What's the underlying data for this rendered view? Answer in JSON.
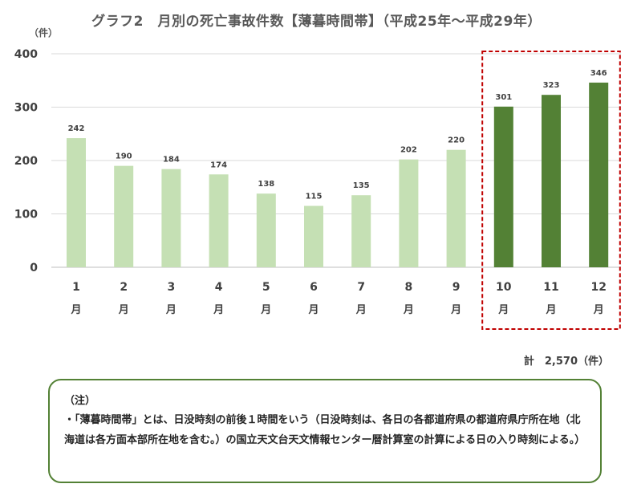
{
  "chart_data": {
    "type": "bar",
    "title": "グラフ2　月別の死亡事故件数【薄暮時間帯】（平成25年～平成29年）",
    "unit_label": "（件）",
    "categories": [
      "1",
      "2",
      "3",
      "4",
      "5",
      "6",
      "7",
      "8",
      "9",
      "10",
      "11",
      "12"
    ],
    "category_suffix": "月",
    "values": [
      242,
      190,
      184,
      174,
      138,
      115,
      135,
      202,
      220,
      301,
      323,
      346
    ],
    "ylim": [
      0,
      400
    ],
    "yticks": [
      0,
      100,
      200,
      300,
      400
    ],
    "grid": true,
    "colors": {
      "light": "#c5e0b4",
      "dark": "#538135",
      "highlight_border": "#c00000"
    },
    "highlighted_categories": [
      "10",
      "11",
      "12"
    ]
  },
  "total_label": "計　2,570（件）",
  "note": {
    "heading": "（注）",
    "body": "・「薄暮時間帯」とは、日没時刻の前後１時間をいう（日没時刻は、各日の各都道府県の都道府県庁所在地（北海道は各方面本部所在地を含む。）の国立天文台天文情報センター暦計算室の計算による日の入り時刻による。）"
  }
}
